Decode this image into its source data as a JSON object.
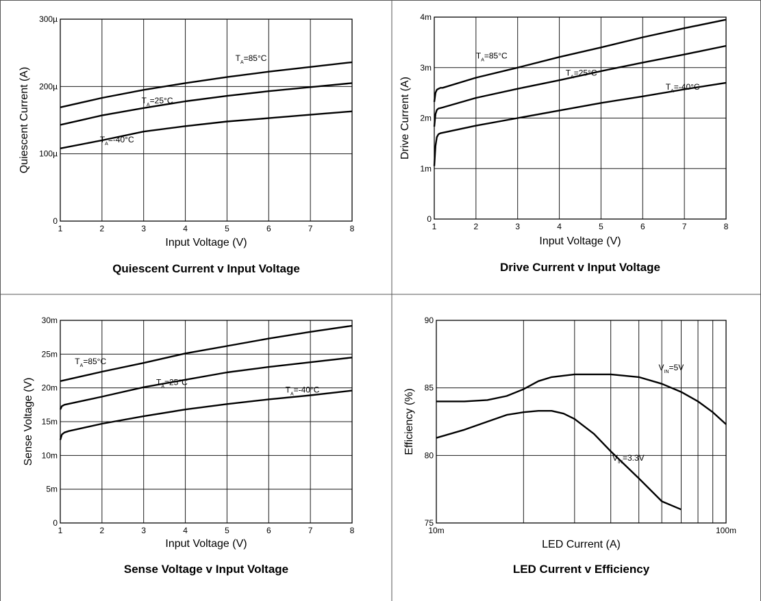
{
  "chart_data": [
    {
      "type": "line",
      "title": "Quiescent Current v Input Voltage",
      "xlabel": "Input Voltage (V)",
      "ylabel": "Quiescent Current (A)",
      "xlim": [
        1,
        8
      ],
      "ylim": [
        0,
        0.0003
      ],
      "x_ticks": [
        "1",
        "2",
        "3",
        "4",
        "5",
        "6",
        "7",
        "8"
      ],
      "y_ticks": [
        "0",
        "100µ",
        "200µ",
        "300µ"
      ],
      "grid": true,
      "series": [
        {
          "name": "TA=85°C",
          "label_main": "T",
          "label_sub": "A",
          "label_rest": "=85°C",
          "x": [
            1,
            2,
            3,
            4,
            5,
            6,
            7,
            8
          ],
          "values": [
            0.000169,
            0.000183,
            0.000195,
            0.000205,
            0.000214,
            0.000222,
            0.000229,
            0.000236
          ]
        },
        {
          "name": "TA=25°C",
          "label_main": "T",
          "label_sub": "A",
          "label_rest": "=25°C",
          "x": [
            1,
            2,
            3,
            4,
            5,
            6,
            7,
            8
          ],
          "values": [
            0.000143,
            0.000157,
            0.000168,
            0.000178,
            0.000186,
            0.000193,
            0.000199,
            0.000205
          ]
        },
        {
          "name": "TA=-40°C",
          "label_main": "T",
          "label_sub": "A",
          "label_rest": "=-40°C",
          "x": [
            1,
            2,
            3,
            4,
            5,
            6,
            7,
            8
          ],
          "values": [
            0.000108,
            0.00012,
            0.000133,
            0.000141,
            0.000148,
            0.000153,
            0.000158,
            0.000163
          ]
        }
      ],
      "annotations": [
        {
          "series": 0,
          "x": 5.2,
          "y": 0.000238
        },
        {
          "series": 1,
          "x": 2.95,
          "y": 0.000175
        },
        {
          "series": 2,
          "x": 1.95,
          "y": 0.000117
        }
      ]
    },
    {
      "type": "line",
      "title": "Drive Current v Input Voltage",
      "xlabel": "Input Voltage (V)",
      "ylabel": "Drive Current (A)",
      "xlim": [
        1,
        8
      ],
      "ylim": [
        0,
        0.004
      ],
      "x_ticks": [
        "1",
        "2",
        "3",
        "4",
        "5",
        "6",
        "7",
        "8"
      ],
      "y_ticks": [
        "0",
        "1m",
        "2m",
        "3m",
        "4m"
      ],
      "grid": true,
      "series": [
        {
          "name": "TA=85°C",
          "label_main": "T",
          "label_sub": "A",
          "label_rest": "=85°C",
          "x": [
            1.0,
            1.03,
            1.06,
            1.1,
            1.15,
            1.2,
            2,
            3,
            4,
            5,
            6,
            7,
            8
          ],
          "values": [
            0.00232,
            0.0025,
            0.00256,
            0.00258,
            0.0026,
            0.0026,
            0.0028,
            0.003,
            0.00321,
            0.0034,
            0.0036,
            0.00378,
            0.00395
          ]
        },
        {
          "name": "TA=25°C",
          "label_main": "T",
          "label_sub": "A",
          "label_rest": "=25°C",
          "x": [
            1.0,
            1.03,
            1.06,
            1.1,
            1.15,
            1.2,
            2,
            3,
            4,
            5,
            6,
            7,
            8
          ],
          "values": [
            0.00183,
            0.00208,
            0.00216,
            0.00219,
            0.0022,
            0.00221,
            0.0024,
            0.00258,
            0.00275,
            0.00293,
            0.0031,
            0.00326,
            0.00343
          ]
        },
        {
          "name": "TA=-40°C",
          "label_main": "T",
          "label_sub": "A",
          "label_rest": "=-40°C",
          "x": [
            1.0,
            1.03,
            1.06,
            1.1,
            1.15,
            1.2,
            2,
            3,
            4,
            5,
            6,
            7,
            8
          ],
          "values": [
            0.00105,
            0.00145,
            0.00162,
            0.00168,
            0.0017,
            0.00171,
            0.00185,
            0.002,
            0.00215,
            0.0023,
            0.00243,
            0.00257,
            0.0027
          ]
        }
      ],
      "annotations": [
        {
          "series": 0,
          "x": 2.0,
          "y": 0.00318
        },
        {
          "series": 1,
          "x": 4.15,
          "y": 0.00284
        },
        {
          "series": 2,
          "x": 6.55,
          "y": 0.00256
        }
      ]
    },
    {
      "type": "line",
      "title": "Sense Voltage v Input Voltage",
      "xlabel": "Input Voltage (V)",
      "ylabel": "Sense Voltage (V)",
      "xlim": [
        1,
        8
      ],
      "ylim": [
        0,
        0.03
      ],
      "x_ticks": [
        "1",
        "2",
        "3",
        "4",
        "5",
        "6",
        "7",
        "8"
      ],
      "y_ticks": [
        "0",
        "5m",
        "10m",
        "15m",
        "20m",
        "25m",
        "30m"
      ],
      "grid": true,
      "series": [
        {
          "name": "TA=85°C",
          "label_main": "T",
          "label_sub": "A",
          "label_rest": "=85°C",
          "x": [
            1,
            2,
            3,
            4,
            5,
            6,
            7,
            8
          ],
          "values": [
            0.021,
            0.0224,
            0.0237,
            0.0251,
            0.0262,
            0.0273,
            0.0283,
            0.0292
          ]
        },
        {
          "name": "TA=25°C",
          "label_main": "T",
          "label_sub": "A",
          "label_rest": "=25°C",
          "x": [
            1.0,
            1.04,
            1.1,
            2,
            3,
            4,
            5,
            6,
            7,
            8
          ],
          "values": [
            0.0168,
            0.0173,
            0.0175,
            0.0187,
            0.0201,
            0.0212,
            0.0223,
            0.0231,
            0.0238,
            0.0245
          ]
        },
        {
          "name": "TA=-40°C",
          "label_main": "T",
          "label_sub": "A",
          "label_rest": "=-40°C",
          "x": [
            1.0,
            1.04,
            1.1,
            1.2,
            2,
            3,
            4,
            5,
            6,
            7,
            8
          ],
          "values": [
            0.0123,
            0.0131,
            0.0134,
            0.0136,
            0.0147,
            0.0158,
            0.0168,
            0.0176,
            0.0183,
            0.0189,
            0.0196
          ]
        }
      ],
      "annotations": [
        {
          "series": 0,
          "x": 1.35,
          "y": 0.0235
        },
        {
          "series": 1,
          "x": 3.3,
          "y": 0.0204
        },
        {
          "series": 2,
          "x": 6.4,
          "y": 0.0193
        }
      ]
    },
    {
      "type": "line",
      "title": "LED Current v Efficiency",
      "xlabel": "LED Current (A)",
      "ylabel": "Efficiency (%)",
      "xscale": "log",
      "xlim": [
        0.01,
        0.1
      ],
      "ylim": [
        75,
        90
      ],
      "x_ticks": [
        "10m",
        "100m"
      ],
      "y_ticks": [
        "75",
        "80",
        "85",
        "90"
      ],
      "grid": true,
      "series": [
        {
          "name": "VIN=5V",
          "label_main": "V",
          "label_sub": "IN",
          "label_rest": "=5V",
          "x": [
            0.01,
            0.0125,
            0.015,
            0.0175,
            0.02,
            0.0225,
            0.025,
            0.03,
            0.035,
            0.04,
            0.05,
            0.06,
            0.07,
            0.08,
            0.09,
            0.1
          ],
          "values": [
            84.0,
            84.0,
            84.1,
            84.4,
            84.9,
            85.5,
            85.8,
            86.0,
            86.0,
            86.0,
            85.8,
            85.3,
            84.7,
            84.0,
            83.2,
            82.3
          ]
        },
        {
          "name": "VIN=3.3V",
          "label_main": "V",
          "label_sub": "IN",
          "label_rest": "=3.3V",
          "x": [
            0.01,
            0.0125,
            0.015,
            0.0175,
            0.02,
            0.0225,
            0.025,
            0.0275,
            0.03,
            0.035,
            0.04,
            0.05,
            0.06,
            0.07
          ],
          "values": [
            81.3,
            81.9,
            82.5,
            83.0,
            83.2,
            83.3,
            83.3,
            83.1,
            82.7,
            81.6,
            80.3,
            78.3,
            76.6,
            76.0
          ]
        }
      ],
      "annotations": [
        {
          "series": 0,
          "x": 0.0585,
          "y": 86.3
        },
        {
          "series": 1,
          "x": 0.0405,
          "y": 79.6
        }
      ]
    }
  ]
}
